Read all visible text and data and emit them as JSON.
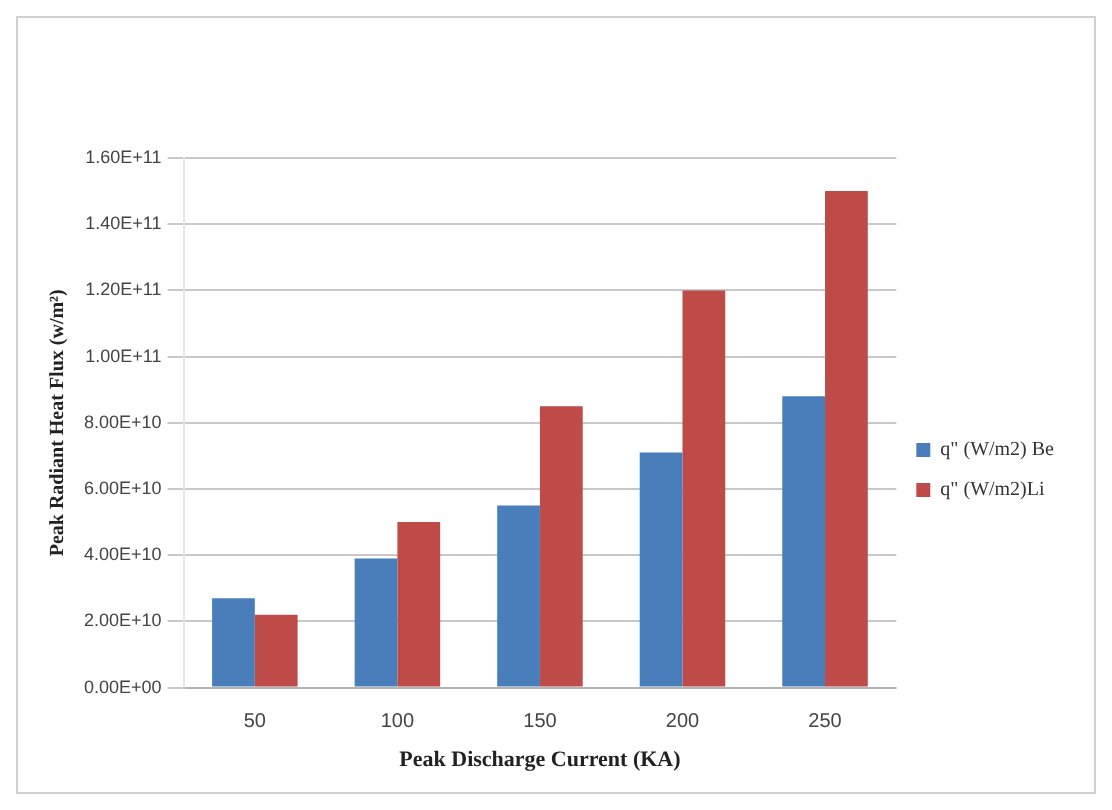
{
  "chart_data": {
    "type": "bar",
    "xlabel": "Peak Discharge Current (KA)",
    "ylabel": "Peak Radiant Heat Flux (w/m²)",
    "categories": [
      "50",
      "100",
      "150",
      "200",
      "250"
    ],
    "series": [
      {
        "name": "q\" (W/m2) Be",
        "color": "#4a7ebb",
        "values": [
          27000000000,
          39000000000,
          55000000000,
          71000000000,
          88000000000
        ]
      },
      {
        "name": "q\" (W/m2)Li",
        "color": "#be4b48",
        "values": [
          22000000000,
          50000000000,
          85000000000,
          120000000000,
          150000000000
        ]
      }
    ],
    "ylim": [
      0,
      160000000000
    ],
    "yticks": [
      {
        "value": 0,
        "label": "0.00E+00"
      },
      {
        "value": 20000000000,
        "label": "2.00E+10"
      },
      {
        "value": 40000000000,
        "label": "4.00E+10"
      },
      {
        "value": 60000000000,
        "label": "6.00E+10"
      },
      {
        "value": 80000000000,
        "label": "8.00E+10"
      },
      {
        "value": 100000000000,
        "label": "1.00E+11"
      },
      {
        "value": 120000000000,
        "label": "1.20E+11"
      },
      {
        "value": 140000000000,
        "label": "1.40E+11"
      },
      {
        "value": 160000000000,
        "label": "1.60E+11"
      }
    ],
    "grid": "y",
    "legend": "right"
  }
}
